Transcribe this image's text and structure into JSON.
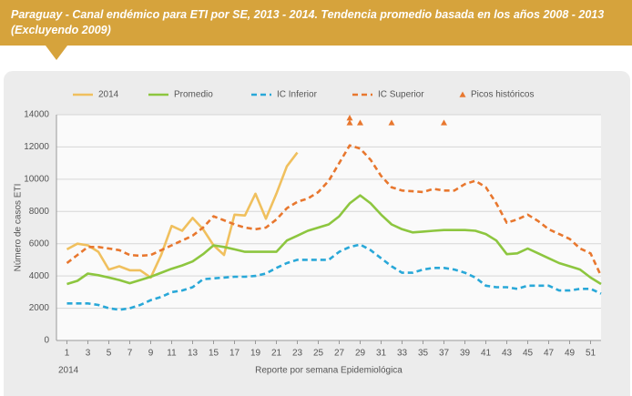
{
  "chart_data": {
    "type": "line",
    "title": "Paraguay - Canal endémico para ETI por SE, 2013 - 2014. Tendencia promedio basada en los años 2008 - 2013 (Excluyendo 2009)",
    "x_label": "Reporte por semana Epidemiológica",
    "x_sublabel": "2014",
    "y_label": "Número de casos ETI",
    "x": [
      1,
      2,
      3,
      4,
      5,
      6,
      7,
      8,
      9,
      10,
      11,
      12,
      13,
      14,
      15,
      16,
      17,
      18,
      19,
      20,
      21,
      22,
      23,
      24,
      25,
      26,
      27,
      28,
      29,
      30,
      31,
      32,
      33,
      34,
      35,
      36,
      37,
      38,
      39,
      40,
      41,
      42,
      43,
      44,
      45,
      46,
      47,
      48,
      49,
      50,
      51,
      52
    ],
    "xlim": [
      0,
      52
    ],
    "xticks": [
      1,
      3,
      5,
      7,
      9,
      11,
      13,
      15,
      17,
      19,
      21,
      23,
      25,
      27,
      29,
      31,
      33,
      35,
      37,
      39,
      41,
      43,
      45,
      47,
      49,
      51
    ],
    "ylim": [
      0,
      14000
    ],
    "yticks": [
      0,
      2000,
      4000,
      6000,
      8000,
      10000,
      12000,
      14000
    ],
    "grid": true,
    "legend": "top",
    "series": [
      {
        "name": "2014",
        "color": "#f0c05e",
        "dash": false,
        "values": [
          5650,
          6000,
          5900,
          5500,
          4400,
          4600,
          4350,
          4350,
          3900,
          5300,
          7100,
          6800,
          7600,
          6900,
          5900,
          5300,
          7800,
          7750,
          9100,
          7550,
          9100,
          10800,
          11650,
          null,
          null,
          null,
          null,
          null,
          null,
          null,
          null,
          null,
          null,
          null,
          null,
          null,
          null,
          null,
          null,
          null,
          null,
          null,
          null,
          null,
          null,
          null,
          null,
          null,
          null,
          null,
          null,
          null
        ]
      },
      {
        "name": "Promedio",
        "color": "#8dc63f",
        "dash": false,
        "values": [
          3500,
          3700,
          4150,
          4050,
          3900,
          3750,
          3550,
          3750,
          3950,
          4200,
          4450,
          4650,
          4900,
          5350,
          5900,
          5800,
          5650,
          5500,
          5500,
          5500,
          5500,
          6200,
          6500,
          6800,
          7000,
          7200,
          7700,
          8500,
          9000,
          8500,
          7800,
          7200,
          6900,
          6700,
          6750,
          6800,
          6850,
          6850,
          6850,
          6800,
          6600,
          6200,
          5350,
          5400,
          5700,
          5400,
          5100,
          4800,
          4600,
          4400,
          3900,
          3500
        ]
      },
      {
        "name": "IC Inferior",
        "color": "#29a8d8",
        "dash": true,
        "values": [
          2300,
          2300,
          2300,
          2200,
          2000,
          1900,
          2000,
          2200,
          2500,
          2700,
          3000,
          3100,
          3300,
          3800,
          3850,
          3900,
          3950,
          3950,
          4000,
          4150,
          4500,
          4800,
          5000,
          5000,
          5000,
          5000,
          5500,
          5800,
          5950,
          5600,
          5100,
          4600,
          4200,
          4200,
          4400,
          4500,
          4500,
          4400,
          4200,
          3900,
          3400,
          3300,
          3300,
          3200,
          3400,
          3400,
          3400,
          3100,
          3100,
          3200,
          3200,
          2900
        ]
      },
      {
        "name": "IC Superior",
        "color": "#e8772e",
        "dash": true,
        "values": [
          4800,
          5300,
          5800,
          5800,
          5700,
          5600,
          5300,
          5250,
          5300,
          5600,
          5900,
          6200,
          6500,
          7000,
          7700,
          7450,
          7200,
          7000,
          6900,
          7000,
          7500,
          8200,
          8600,
          8800,
          9200,
          9900,
          11000,
          12100,
          11900,
          11200,
          10200,
          9500,
          9300,
          9250,
          9200,
          9400,
          9300,
          9300,
          9700,
          9900,
          9500,
          8500,
          7300,
          7500,
          7800,
          7400,
          6900,
          6600,
          6300,
          5700,
          5400,
          4000
        ]
      },
      {
        "name": "Picos históricos",
        "color": "#e8772e",
        "type": "scatter",
        "x": [
          28,
          28,
          29,
          32,
          37
        ],
        "values": [
          13800,
          13500,
          13500,
          13500,
          13500
        ]
      }
    ]
  }
}
